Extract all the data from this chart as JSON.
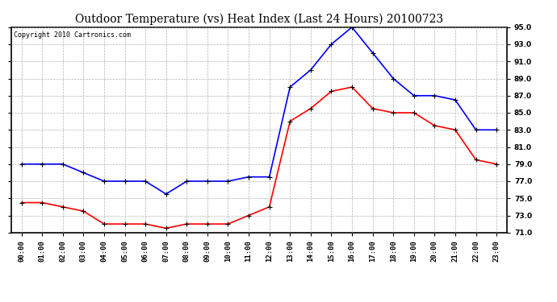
{
  "title": "Outdoor Temperature (vs) Heat Index (Last 24 Hours) 20100723",
  "copyright": "Copyright 2010 Cartronics.com",
  "x_labels": [
    "00:00",
    "01:00",
    "02:00",
    "03:00",
    "04:00",
    "05:00",
    "06:00",
    "07:00",
    "08:00",
    "09:00",
    "10:00",
    "11:00",
    "12:00",
    "13:00",
    "14:00",
    "15:00",
    "16:00",
    "17:00",
    "18:00",
    "19:00",
    "20:00",
    "21:00",
    "22:00",
    "23:00"
  ],
  "blue_data": [
    79.0,
    79.0,
    79.0,
    78.0,
    77.0,
    77.0,
    77.0,
    75.5,
    77.0,
    77.0,
    77.0,
    77.5,
    77.5,
    88.0,
    90.0,
    93.0,
    95.0,
    92.0,
    89.0,
    87.0,
    87.0,
    86.5,
    83.0,
    83.0
  ],
  "red_data": [
    74.5,
    74.5,
    74.0,
    73.5,
    72.0,
    72.0,
    72.0,
    71.5,
    72.0,
    72.0,
    72.0,
    73.0,
    74.0,
    84.0,
    85.5,
    87.5,
    88.0,
    85.5,
    85.0,
    85.0,
    83.5,
    83.0,
    79.5,
    79.0
  ],
  "ylim": [
    71.0,
    95.0
  ],
  "yticks": [
    71.0,
    73.0,
    75.0,
    77.0,
    79.0,
    81.0,
    83.0,
    85.0,
    87.0,
    89.0,
    91.0,
    93.0,
    95.0
  ],
  "blue_color": "#0000ff",
  "red_color": "#ff0000",
  "grid_color": "#aaaaaa",
  "bg_color": "#ffffff",
  "title_fontsize": 10,
  "axis_label_fontsize": 6.5,
  "copyright_fontsize": 6
}
